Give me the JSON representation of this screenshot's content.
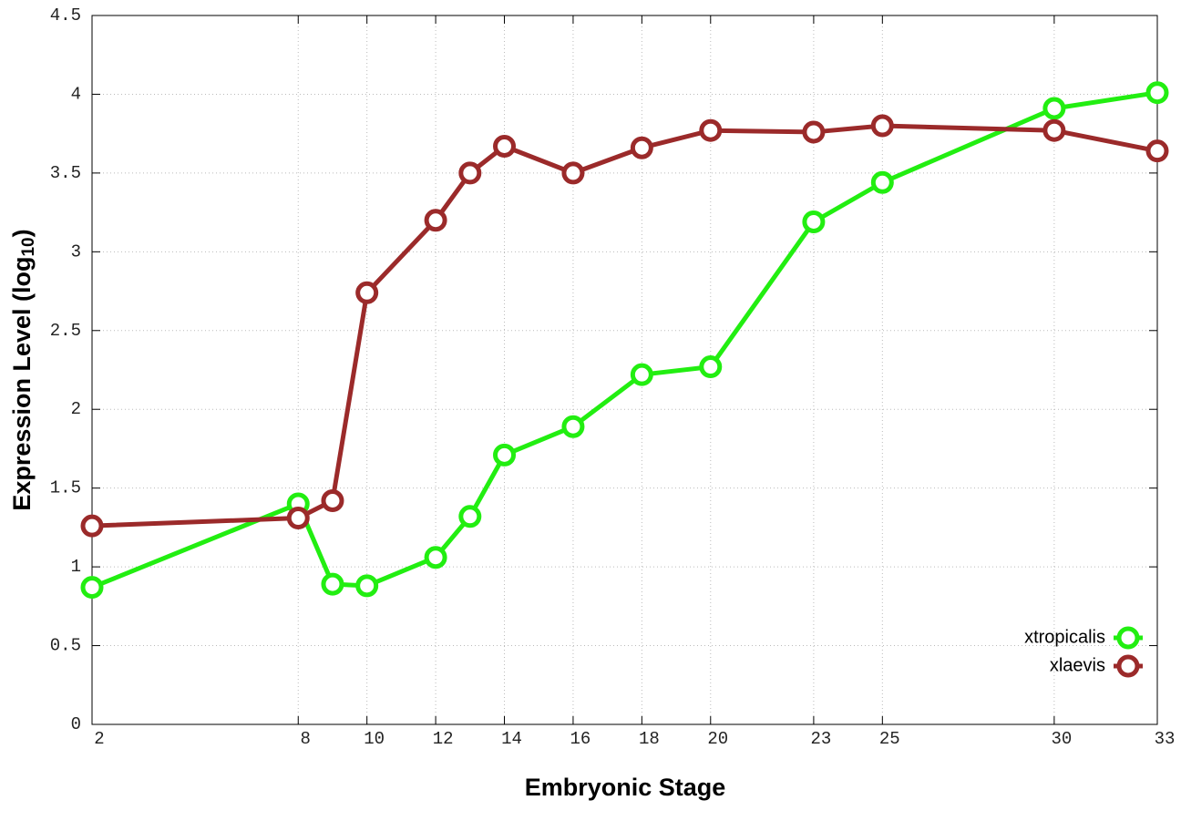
{
  "chart_data": {
    "type": "line",
    "x_label": "Embryonic Stage",
    "y_label": [
      "Expression Level (log",
      "10",
      ")"
    ],
    "x": [
      2,
      8,
      9,
      10,
      12,
      13,
      14,
      16,
      18,
      20,
      23,
      25,
      30,
      33
    ],
    "series": [
      {
        "name": "xtropicalis",
        "color": "#22ee11",
        "values": [
          0.87,
          1.4,
          0.89,
          0.88,
          1.06,
          1.32,
          1.71,
          1.89,
          2.22,
          2.27,
          3.19,
          3.44,
          3.91,
          4.01
        ]
      },
      {
        "name": "xlaevis",
        "color": "#9b2a2a",
        "values": [
          1.26,
          1.31,
          1.42,
          2.74,
          3.2,
          3.5,
          3.67,
          3.5,
          3.66,
          3.77,
          3.76,
          3.8,
          3.77,
          3.64
        ]
      }
    ],
    "xlim": [
      2,
      33
    ],
    "xticks": [
      2,
      8,
      10,
      12,
      14,
      16,
      18,
      20,
      23,
      25,
      30,
      33
    ],
    "ylim": [
      0,
      4.5
    ],
    "yticks": [
      0,
      0.5,
      1,
      1.5,
      2,
      2.5,
      3,
      3.5,
      4,
      4.5
    ],
    "grid": true,
    "legend": "lower right"
  }
}
